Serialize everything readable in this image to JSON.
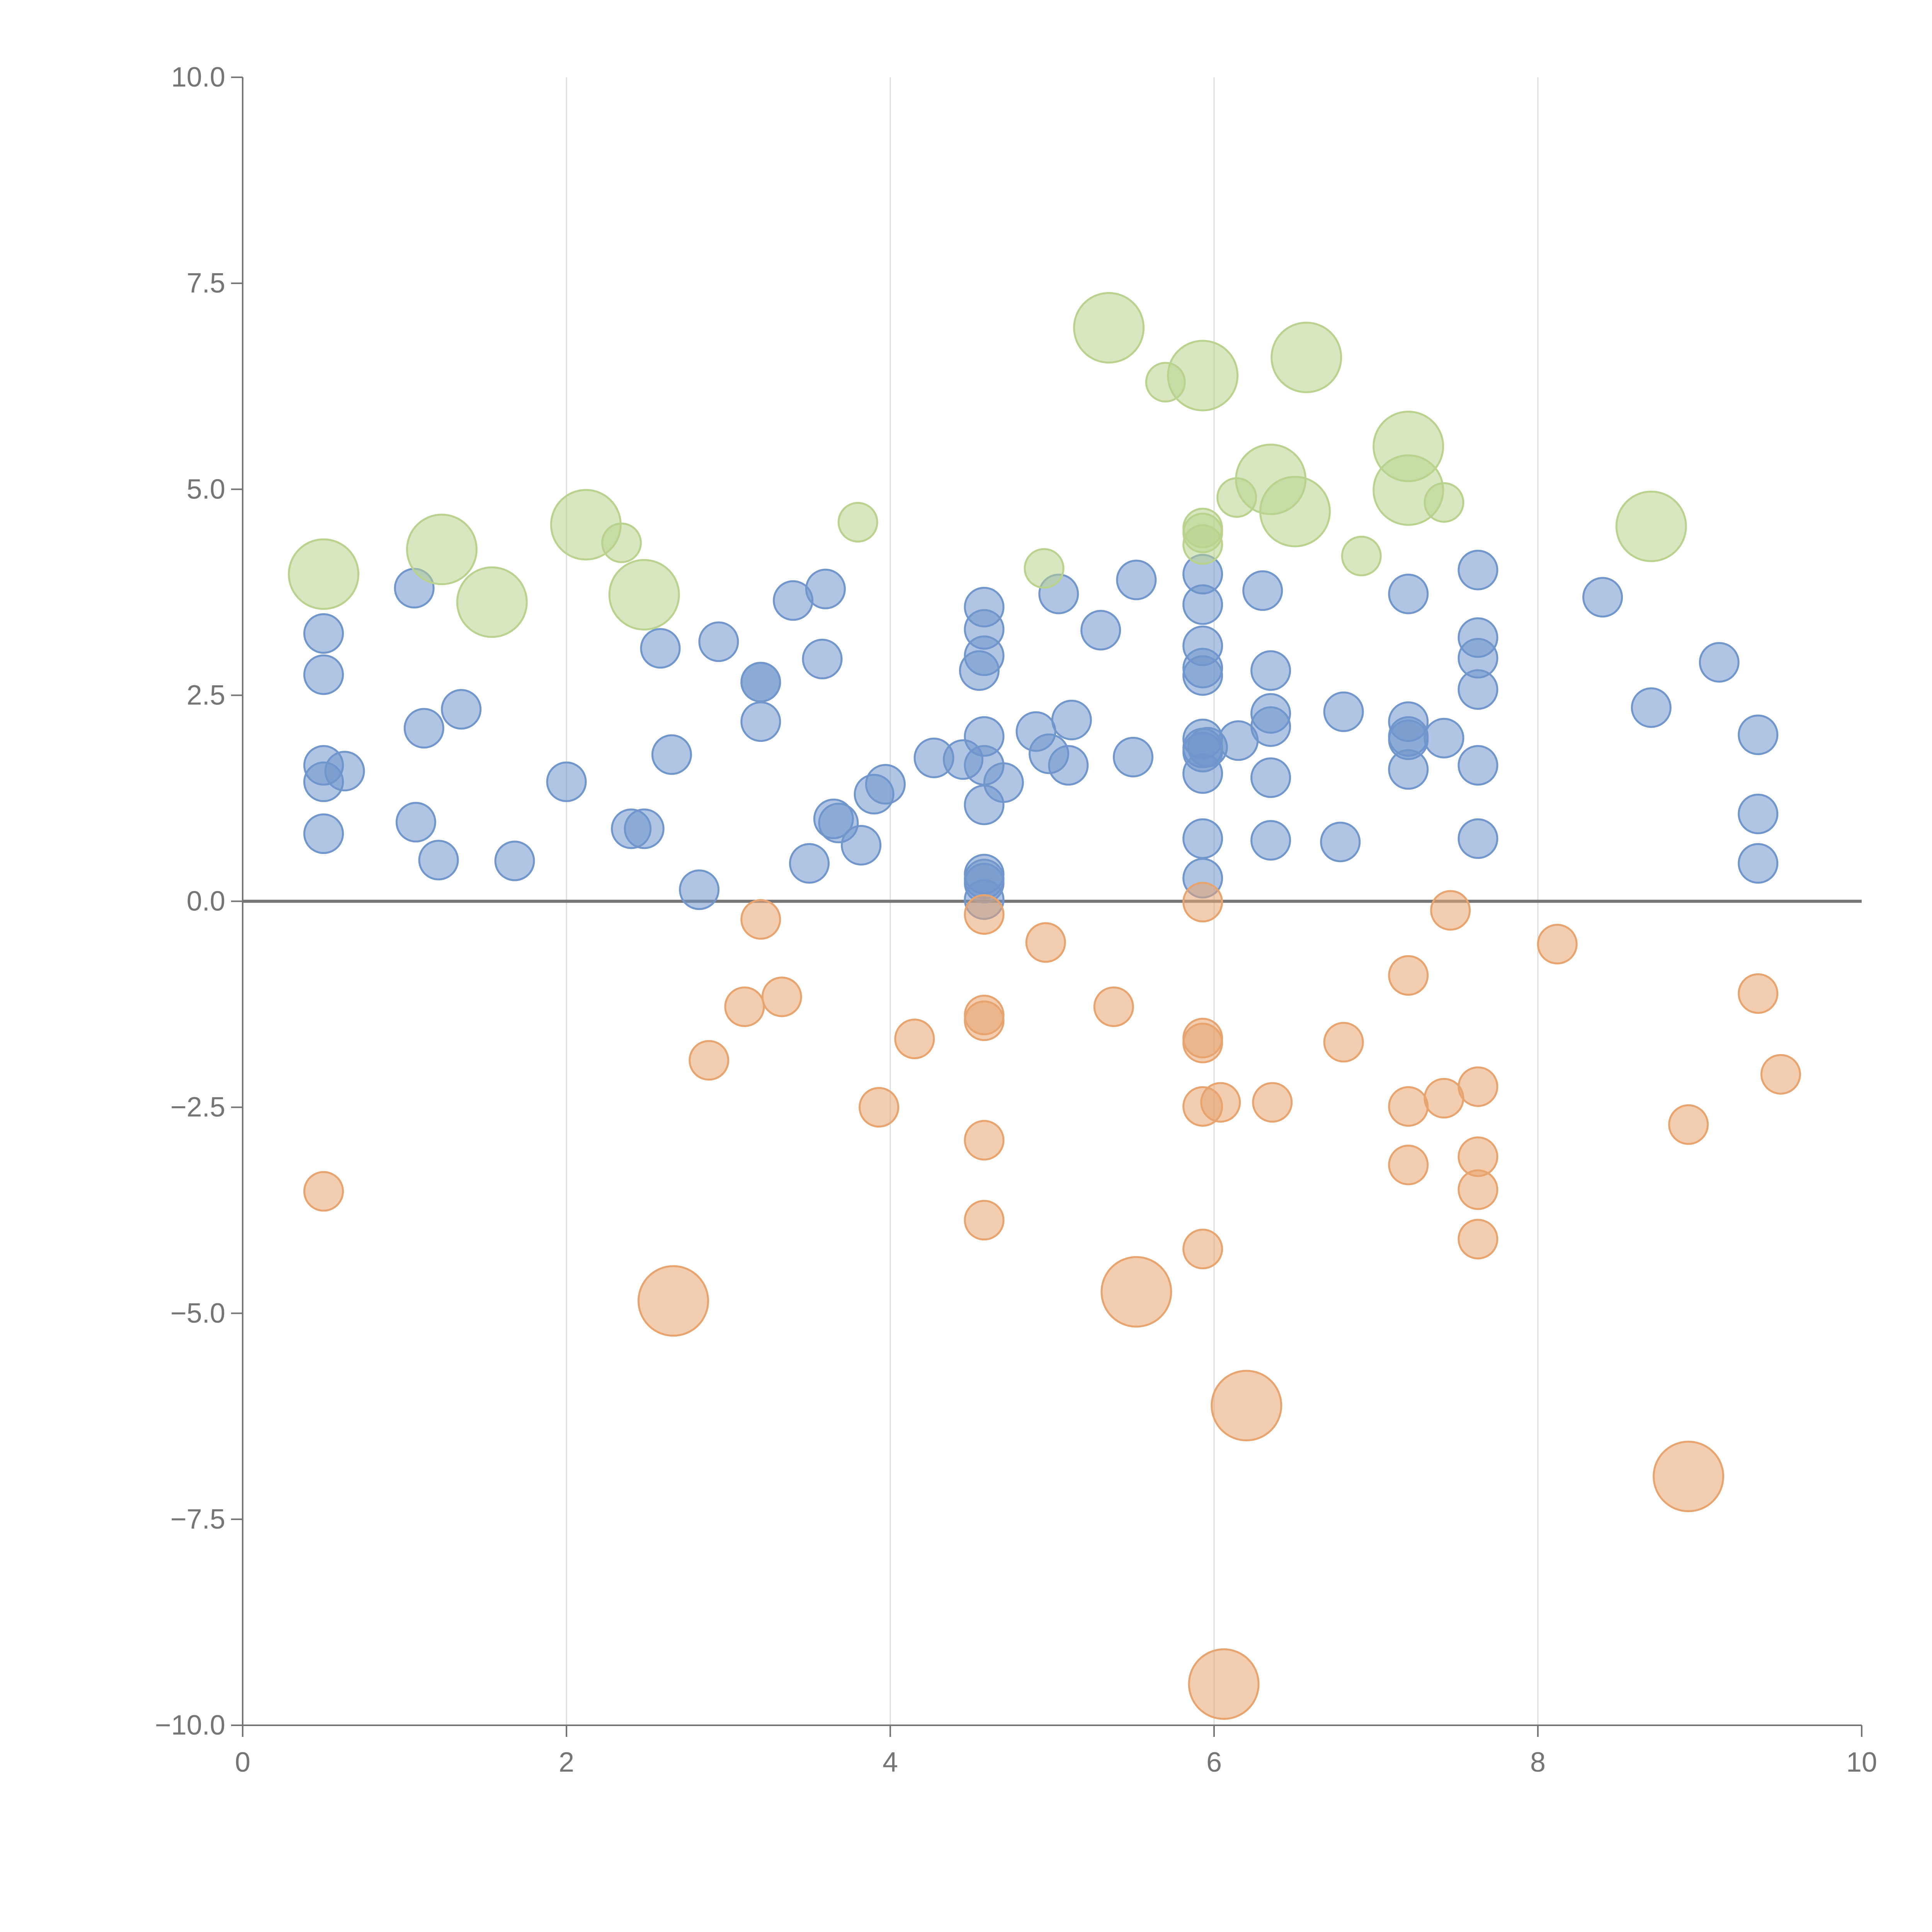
{
  "chart_data": {
    "type": "scatter",
    "variant": "bubble",
    "title": "",
    "xlabel": "",
    "ylabel": "",
    "xlim": [
      0,
      10
    ],
    "ylim": [
      -10,
      10
    ],
    "x_ticks": [
      0,
      2,
      4,
      6,
      8,
      10
    ],
    "x_tick_labels": [
      "0",
      "2",
      "4",
      "6",
      "8",
      "10"
    ],
    "y_ticks": [
      10,
      7.5,
      5,
      2.5,
      0,
      -2.5,
      -5,
      -7.5,
      -10
    ],
    "y_tick_labels": [
      "10.0",
      "7.5",
      "5.0",
      "2.5",
      "0.0",
      "−2.5",
      "−5.0",
      "−7.5",
      "−10.0"
    ],
    "grid": "vertical",
    "zero_line": true,
    "legend": "none",
    "series": [
      {
        "name": "blue",
        "color": "#7096cc",
        "size": 1,
        "points": [
          [
            0.5,
            3.25
          ],
          [
            0.5,
            2.75
          ],
          [
            0.5,
            1.65
          ],
          [
            0.5,
            1.45
          ],
          [
            0.5,
            0.82
          ],
          [
            0.63,
            1.58
          ],
          [
            1.06,
            3.8
          ],
          [
            1.07,
            0.96
          ],
          [
            1.12,
            2.1
          ],
          [
            1.21,
            0.5
          ],
          [
            1.35,
            2.33
          ],
          [
            1.68,
            0.49
          ],
          [
            2.0,
            1.45
          ],
          [
            2.4,
            0.88
          ],
          [
            2.48,
            0.88
          ],
          [
            2.58,
            3.07
          ],
          [
            2.65,
            1.78
          ],
          [
            2.82,
            0.14
          ],
          [
            2.94,
            3.15
          ],
          [
            3.2,
            2.66
          ],
          [
            3.2,
            2.66
          ],
          [
            3.2,
            2.18
          ],
          [
            3.4,
            3.65
          ],
          [
            3.5,
            0.46
          ],
          [
            3.58,
            2.94
          ],
          [
            3.6,
            3.79
          ],
          [
            3.65,
            1.0
          ],
          [
            3.68,
            0.95
          ],
          [
            3.82,
            0.68
          ],
          [
            3.9,
            1.3
          ],
          [
            3.97,
            1.42
          ],
          [
            4.27,
            1.74
          ],
          [
            4.45,
            1.72
          ],
          [
            4.58,
            3.57
          ],
          [
            4.58,
            3.3
          ],
          [
            4.58,
            2.98
          ],
          [
            4.58,
            2.0
          ],
          [
            4.58,
            1.65
          ],
          [
            4.58,
            1.17
          ],
          [
            4.58,
            0.33
          ],
          [
            4.58,
            0.27
          ],
          [
            4.58,
            0.22
          ],
          [
            4.58,
            0.02
          ],
          [
            4.55,
            2.8
          ],
          [
            4.7,
            1.44
          ],
          [
            4.9,
            2.06
          ],
          [
            4.98,
            1.79
          ],
          [
            5.04,
            3.73
          ],
          [
            5.1,
            1.65
          ],
          [
            5.12,
            2.2
          ],
          [
            5.3,
            3.29
          ],
          [
            5.5,
            1.75
          ],
          [
            5.52,
            3.9
          ],
          [
            5.93,
            3.97
          ],
          [
            5.93,
            3.6
          ],
          [
            5.93,
            3.1
          ],
          [
            5.93,
            2.83
          ],
          [
            5.93,
            2.74
          ],
          [
            5.93,
            1.97
          ],
          [
            5.93,
            1.86
          ],
          [
            5.93,
            1.81
          ],
          [
            5.93,
            1.55
          ],
          [
            5.93,
            0.76
          ],
          [
            5.93,
            0.28
          ],
          [
            5.96,
            1.87
          ],
          [
            6.15,
            1.95
          ],
          [
            6.3,
            3.77
          ],
          [
            6.35,
            2.8
          ],
          [
            6.35,
            2.28
          ],
          [
            6.35,
            2.12
          ],
          [
            6.35,
            1.5
          ],
          [
            6.35,
            0.74
          ],
          [
            6.78,
            0.72
          ],
          [
            6.8,
            2.3
          ],
          [
            7.2,
            3.73
          ],
          [
            7.2,
            2.18
          ],
          [
            7.2,
            2.0
          ],
          [
            7.2,
            1.96
          ],
          [
            7.2,
            1.6
          ],
          [
            7.42,
            1.98
          ],
          [
            7.63,
            4.02
          ],
          [
            7.63,
            3.2
          ],
          [
            7.63,
            2.95
          ],
          [
            7.63,
            2.57
          ],
          [
            7.63,
            1.65
          ],
          [
            7.63,
            0.76
          ],
          [
            8.4,
            3.69
          ],
          [
            8.7,
            2.35
          ],
          [
            9.12,
            2.9
          ],
          [
            9.36,
            2.02
          ],
          [
            9.36,
            1.06
          ],
          [
            9.36,
            0.46
          ]
        ]
      },
      {
        "name": "orange",
        "color": "#e8a46f",
        "points": [
          {
            "x": 0.5,
            "y": -3.52,
            "s": 1
          },
          {
            "x": 2.66,
            "y": -4.85,
            "s": 2
          },
          {
            "x": 2.88,
            "y": -1.93,
            "s": 1
          },
          {
            "x": 3.1,
            "y": -1.28,
            "s": 1
          },
          {
            "x": 3.2,
            "y": -0.22,
            "s": 1
          },
          {
            "x": 3.33,
            "y": -1.16,
            "s": 1
          },
          {
            "x": 3.93,
            "y": -2.5,
            "s": 1
          },
          {
            "x": 4.15,
            "y": -1.67,
            "s": 1
          },
          {
            "x": 4.58,
            "y": -0.16,
            "s": 1
          },
          {
            "x": 4.58,
            "y": -1.38,
            "s": 1
          },
          {
            "x": 4.58,
            "y": -1.45,
            "s": 1
          },
          {
            "x": 4.58,
            "y": -2.9,
            "s": 1
          },
          {
            "x": 4.58,
            "y": -3.87,
            "s": 1
          },
          {
            "x": 4.96,
            "y": -0.5,
            "s": 1
          },
          {
            "x": 5.38,
            "y": -1.28,
            "s": 1
          },
          {
            "x": 5.52,
            "y": -4.74,
            "s": 2
          },
          {
            "x": 5.93,
            "y": -0.01,
            "s": 1
          },
          {
            "x": 5.93,
            "y": -1.66,
            "s": 1
          },
          {
            "x": 5.93,
            "y": -1.72,
            "s": 1
          },
          {
            "x": 5.93,
            "y": -2.49,
            "s": 1
          },
          {
            "x": 5.93,
            "y": -4.22,
            "s": 1
          },
          {
            "x": 6.04,
            "y": -2.44,
            "s": 1
          },
          {
            "x": 6.06,
            "y": -9.5,
            "s": 2
          },
          {
            "x": 6.2,
            "y": -6.12,
            "s": 2
          },
          {
            "x": 6.36,
            "y": -2.44,
            "s": 1
          },
          {
            "x": 6.8,
            "y": -1.71,
            "s": 1
          },
          {
            "x": 7.2,
            "y": -0.9,
            "s": 1
          },
          {
            "x": 7.2,
            "y": -2.49,
            "s": 1
          },
          {
            "x": 7.2,
            "y": -3.2,
            "s": 1
          },
          {
            "x": 7.42,
            "y": -2.39,
            "s": 1
          },
          {
            "x": 7.46,
            "y": -0.11,
            "s": 1
          },
          {
            "x": 7.63,
            "y": -2.25,
            "s": 1
          },
          {
            "x": 7.63,
            "y": -3.1,
            "s": 1
          },
          {
            "x": 7.63,
            "y": -3.5,
            "s": 1
          },
          {
            "x": 7.63,
            "y": -4.1,
            "s": 1
          },
          {
            "x": 8.12,
            "y": -0.52,
            "s": 1
          },
          {
            "x": 8.93,
            "y": -2.71,
            "s": 1
          },
          {
            "x": 8.93,
            "y": -6.98,
            "s": 2
          },
          {
            "x": 9.36,
            "y": -1.12,
            "s": 1
          },
          {
            "x": 9.5,
            "y": -2.1,
            "s": 1
          }
        ]
      },
      {
        "name": "green",
        "color": "#b9d38e",
        "points": [
          {
            "x": 0.5,
            "y": 3.97,
            "s": 2
          },
          {
            "x": 1.23,
            "y": 4.27,
            "s": 2
          },
          {
            "x": 1.54,
            "y": 3.63,
            "s": 2
          },
          {
            "x": 2.12,
            "y": 4.57,
            "s": 2
          },
          {
            "x": 2.34,
            "y": 4.35,
            "s": 1
          },
          {
            "x": 2.48,
            "y": 3.72,
            "s": 2
          },
          {
            "x": 3.8,
            "y": 4.6,
            "s": 1
          },
          {
            "x": 4.95,
            "y": 4.04,
            "s": 1
          },
          {
            "x": 5.35,
            "y": 6.96,
            "s": 2
          },
          {
            "x": 5.7,
            "y": 6.3,
            "s": 1
          },
          {
            "x": 5.93,
            "y": 6.38,
            "s": 2
          },
          {
            "x": 5.93,
            "y": 4.53,
            "s": 1
          },
          {
            "x": 5.93,
            "y": 4.47,
            "s": 1
          },
          {
            "x": 5.93,
            "y": 4.33,
            "s": 1
          },
          {
            "x": 6.14,
            "y": 4.9,
            "s": 1
          },
          {
            "x": 6.35,
            "y": 5.12,
            "s": 2
          },
          {
            "x": 6.5,
            "y": 4.73,
            "s": 2
          },
          {
            "x": 6.57,
            "y": 6.6,
            "s": 2
          },
          {
            "x": 6.91,
            "y": 4.19,
            "s": 1
          },
          {
            "x": 7.2,
            "y": 5.52,
            "s": 2
          },
          {
            "x": 7.2,
            "y": 4.99,
            "s": 2
          },
          {
            "x": 7.42,
            "y": 4.84,
            "s": 1
          },
          {
            "x": 8.7,
            "y": 4.55,
            "s": 2
          }
        ]
      }
    ]
  }
}
